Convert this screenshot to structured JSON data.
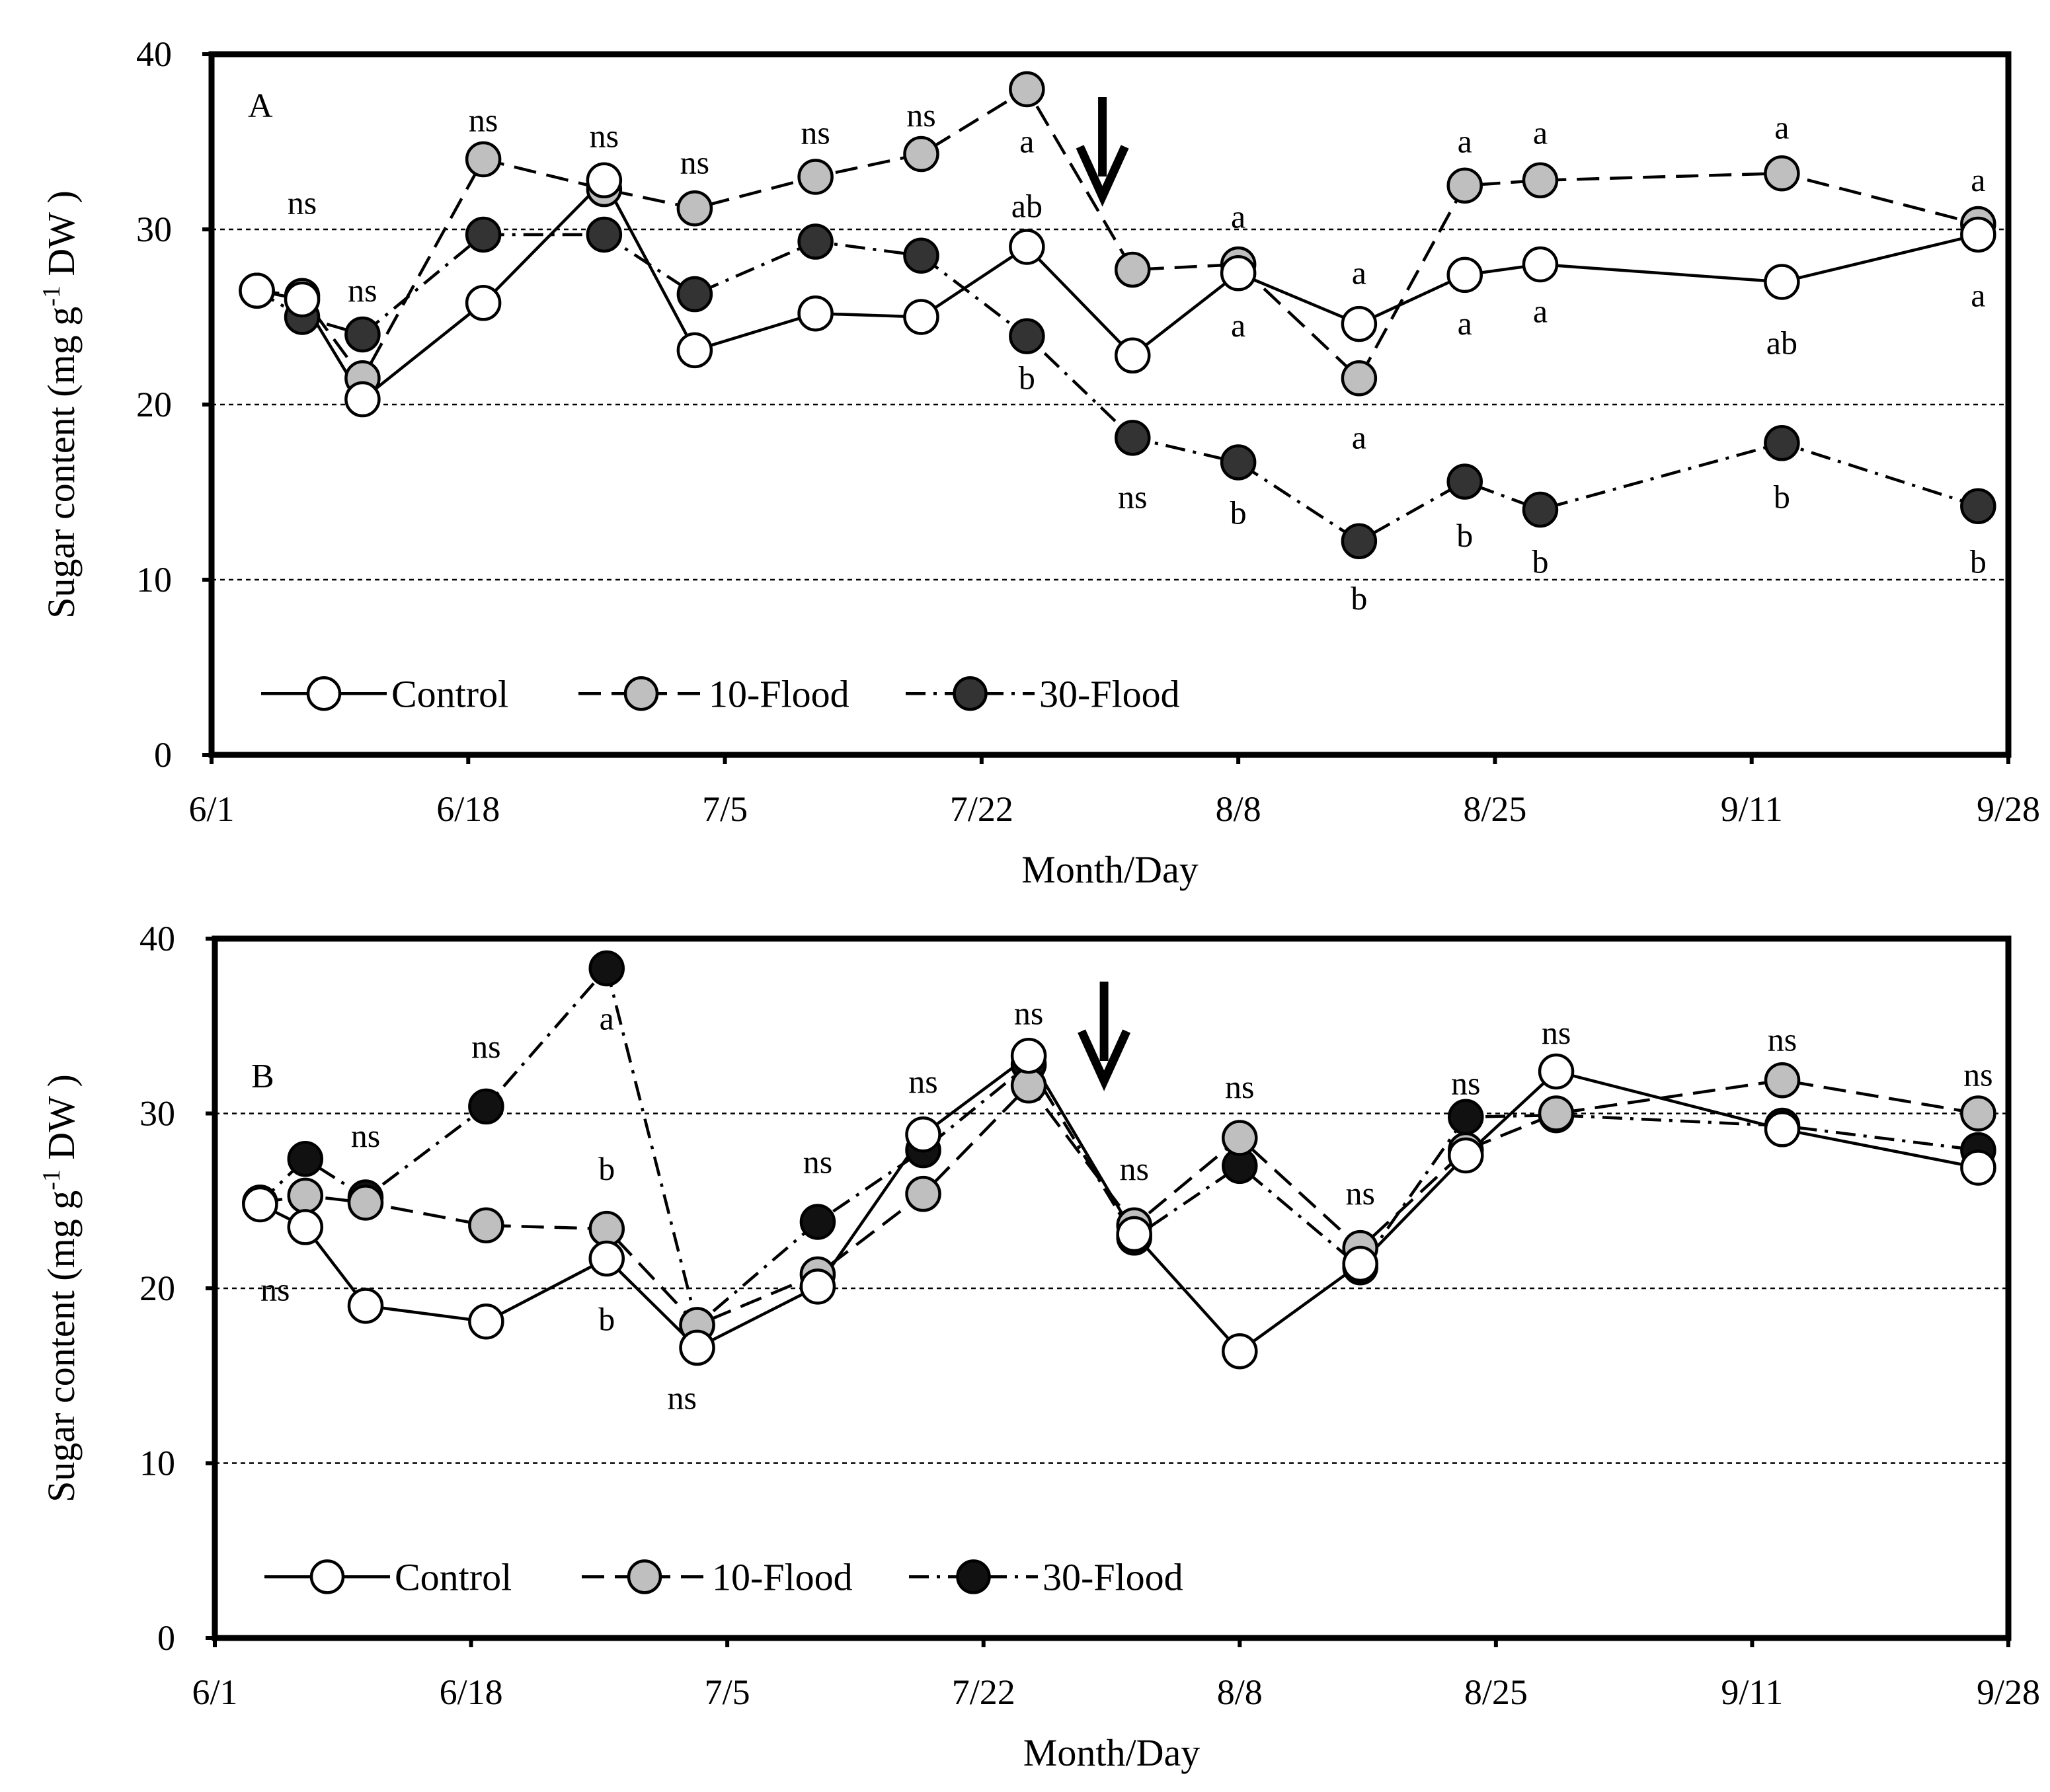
{
  "chart_data": [
    {
      "type": "line",
      "panel_label": "A",
      "xlabel": "Month/Day",
      "ylabel": "Sugar content (mg g-1 DW )",
      "ylim": [
        0,
        40
      ],
      "yticks": [
        "0",
        "10",
        "20",
        "30",
        "40"
      ],
      "xticks": [
        "6/1",
        "6/18",
        "7/5",
        "7/22",
        "8/8",
        "8/25",
        "9/11",
        "9/28"
      ],
      "gridlines_y": [
        10,
        20,
        30
      ],
      "legend_position": "bottom-left",
      "arrow_date": "7/30",
      "series": [
        {
          "name": "Control",
          "marker": "open",
          "color": "#ffffff",
          "line": "solid",
          "points": [
            [
              "6/4",
              26.5
            ],
            [
              "6/7",
              26.0
            ],
            [
              "6/11",
              20.3
            ],
            [
              "6/19",
              25.8
            ],
            [
              "6/27",
              32.8
            ],
            [
              "7/3",
              23.1
            ],
            [
              "7/11",
              25.2
            ],
            [
              "7/18",
              25.0
            ],
            [
              "7/25",
              29.0
            ],
            [
              "8/1",
              22.8
            ],
            [
              "8/8",
              27.5
            ],
            [
              "8/16",
              24.6
            ],
            [
              "8/23",
              27.4
            ],
            [
              "8/28",
              28.0
            ],
            [
              "9/13",
              27.0
            ],
            [
              "9/26",
              29.7
            ]
          ]
        },
        {
          "name": "10-Flood",
          "marker": "grey",
          "color": "#bfbfbf",
          "line": "dashed",
          "points": [
            [
              "6/4",
              26.5
            ],
            [
              "6/7",
              26.2
            ],
            [
              "6/11",
              21.5
            ],
            [
              "6/19",
              34.0
            ],
            [
              "6/27",
              32.3
            ],
            [
              "7/3",
              31.2
            ],
            [
              "7/11",
              33.0
            ],
            [
              "7/18",
              34.3
            ],
            [
              "7/25",
              38.0
            ],
            [
              "8/1",
              27.7
            ],
            [
              "8/8",
              28.0
            ],
            [
              "8/16",
              21.5
            ],
            [
              "8/23",
              32.5
            ],
            [
              "8/28",
              32.8
            ],
            [
              "9/13",
              33.2
            ],
            [
              "9/26",
              30.3
            ]
          ]
        },
        {
          "name": "30-Flood",
          "marker": "filled",
          "color": "#333333",
          "line": "dash-dot",
          "points": [
            [
              "6/4",
              26.5
            ],
            [
              "6/7",
              25.0
            ],
            [
              "6/11",
              24.0
            ],
            [
              "6/19",
              29.7
            ],
            [
              "6/27",
              29.7
            ],
            [
              "7/3",
              26.3
            ],
            [
              "7/11",
              29.3
            ],
            [
              "7/18",
              28.5
            ],
            [
              "7/25",
              23.9
            ],
            [
              "8/1",
              18.1
            ],
            [
              "8/8",
              16.7
            ],
            [
              "8/16",
              12.2
            ],
            [
              "8/23",
              15.6
            ],
            [
              "8/28",
              14.0
            ],
            [
              "9/13",
              17.8
            ],
            [
              "9/26",
              14.2
            ]
          ]
        }
      ],
      "annotations": [
        {
          "text": "ns",
          "x": "6/7",
          "y": 31.5
        },
        {
          "text": "ns",
          "x": "6/11",
          "y": 26.5
        },
        {
          "text": "ns",
          "x": "6/19",
          "y": 36.2
        },
        {
          "text": "ns",
          "x": "6/27",
          "y": 35.3
        },
        {
          "text": "ns",
          "x": "7/3",
          "y": 33.8
        },
        {
          "text": "ns",
          "x": "7/11",
          "y": 35.5
        },
        {
          "text": "ns",
          "x": "7/18",
          "y": 36.5
        },
        {
          "text": "a",
          "x": "7/25",
          "y": 35.0
        },
        {
          "text": "ab",
          "x": "7/25",
          "y": 31.3
        },
        {
          "text": "b",
          "x": "7/25",
          "y": 21.5
        },
        {
          "text": "ns",
          "x": "8/1",
          "y": 14.7
        },
        {
          "text": "a",
          "x": "8/8",
          "y": 30.7
        },
        {
          "text": "a",
          "x": "8/8",
          "y": 24.5
        },
        {
          "text": "b",
          "x": "8/8",
          "y": 13.8
        },
        {
          "text": "a",
          "x": "8/16",
          "y": 27.5
        },
        {
          "text": "a",
          "x": "8/16",
          "y": 18.1
        },
        {
          "text": "b",
          "x": "8/16",
          "y": 8.9
        },
        {
          "text": "a",
          "x": "8/23",
          "y": 35.0
        },
        {
          "text": "a",
          "x": "8/23",
          "y": 24.6
        },
        {
          "text": "b",
          "x": "8/23",
          "y": 12.5
        },
        {
          "text": "a",
          "x": "8/28",
          "y": 35.5
        },
        {
          "text": "a",
          "x": "8/28",
          "y": 25.3
        },
        {
          "text": "b",
          "x": "8/28",
          "y": 11.0
        },
        {
          "text": "a",
          "x": "9/13",
          "y": 35.8
        },
        {
          "text": "ab",
          "x": "9/13",
          "y": 23.5
        },
        {
          "text": "b",
          "x": "9/13",
          "y": 14.7
        },
        {
          "text": "a",
          "x": "9/26",
          "y": 32.8
        },
        {
          "text": "a",
          "x": "9/26",
          "y": 26.2
        },
        {
          "text": "b",
          "x": "9/26",
          "y": 11.0
        }
      ]
    },
    {
      "type": "line",
      "panel_label": "B",
      "xlabel": "Month/Day",
      "ylabel": "Sugar content (mg g-1 DW )",
      "ylim": [
        0,
        40
      ],
      "yticks": [
        "0",
        "10",
        "20",
        "30",
        "40"
      ],
      "xticks": [
        "6/1",
        "6/18",
        "7/5",
        "7/22",
        "8/8",
        "8/25",
        "9/11",
        "9/28"
      ],
      "gridlines_y": [
        10,
        20,
        30
      ],
      "legend_position": "bottom-left",
      "arrow_date": "7/30",
      "series": [
        {
          "name": "Control",
          "marker": "open",
          "color": "#ffffff",
          "line": "solid",
          "points": [
            [
              "6/4",
              24.8
            ],
            [
              "6/7",
              23.5
            ],
            [
              "6/11",
              19.0
            ],
            [
              "6/19",
              18.1
            ],
            [
              "6/27",
              21.7
            ],
            [
              "7/3",
              16.6
            ],
            [
              "7/11",
              20.1
            ],
            [
              "7/18",
              28.8
            ],
            [
              "7/25",
              33.3
            ],
            [
              "8/1",
              23.1
            ],
            [
              "8/8",
              16.4
            ],
            [
              "8/16",
              21.4
            ],
            [
              "8/23",
              27.6
            ],
            [
              "8/29",
              32.4
            ],
            [
              "9/13",
              29.1
            ],
            [
              "9/26",
              26.9
            ]
          ]
        },
        {
          "name": "10-Flood",
          "marker": "grey",
          "color": "#bfbfbf",
          "line": "dashed",
          "points": [
            [
              "6/4",
              24.9
            ],
            [
              "6/7",
              25.3
            ],
            [
              "6/11",
              24.9
            ],
            [
              "6/19",
              23.6
            ],
            [
              "6/27",
              23.4
            ],
            [
              "7/3",
              17.9
            ],
            [
              "7/11",
              20.8
            ],
            [
              "7/18",
              25.4
            ],
            [
              "7/25",
              31.6
            ],
            [
              "8/1",
              23.6
            ],
            [
              "8/8",
              28.6
            ],
            [
              "8/16",
              22.3
            ],
            [
              "8/23",
              27.9
            ],
            [
              "8/29",
              30.0
            ],
            [
              "9/13",
              31.9
            ],
            [
              "9/26",
              30.0
            ]
          ]
        },
        {
          "name": "30-Flood",
          "marker": "filled",
          "color": "#111111",
          "line": "dash-dot",
          "points": [
            [
              "6/4",
              24.9
            ],
            [
              "6/7",
              27.4
            ],
            [
              "6/11",
              25.2
            ],
            [
              "6/19",
              30.4
            ],
            [
              "6/27",
              38.3
            ],
            [
              "7/3",
              17.9
            ],
            [
              "7/11",
              23.8
            ],
            [
              "7/18",
              27.9
            ],
            [
              "7/25",
              32.8
            ],
            [
              "8/1",
              22.9
            ],
            [
              "8/8",
              27.0
            ],
            [
              "8/16",
              21.2
            ],
            [
              "8/23",
              29.8
            ],
            [
              "8/29",
              29.9
            ],
            [
              "9/13",
              29.3
            ],
            [
              "9/26",
              27.9
            ]
          ]
        }
      ],
      "annotations": [
        {
          "text": "ns",
          "x": "6/5",
          "y": 19.9
        },
        {
          "text": "ns",
          "x": "6/11",
          "y": 28.7
        },
        {
          "text": "ns",
          "x": "6/19",
          "y": 33.8
        },
        {
          "text": "a",
          "x": "6/27",
          "y": 35.4
        },
        {
          "text": "b",
          "x": "6/27",
          "y": 26.8
        },
        {
          "text": "b",
          "x": "6/27",
          "y": 18.2
        },
        {
          "text": "ns",
          "x": "7/2",
          "y": 13.7
        },
        {
          "text": "ns",
          "x": "7/11",
          "y": 27.2
        },
        {
          "text": "ns",
          "x": "7/18",
          "y": 31.8
        },
        {
          "text": "ns",
          "x": "7/25",
          "y": 35.7
        },
        {
          "text": "ns",
          "x": "8/1",
          "y": 26.8
        },
        {
          "text": "ns",
          "x": "8/8",
          "y": 31.5
        },
        {
          "text": "ns",
          "x": "8/16",
          "y": 25.4
        },
        {
          "text": "ns",
          "x": "8/23",
          "y": 31.7
        },
        {
          "text": "ns",
          "x": "8/29",
          "y": 34.6
        },
        {
          "text": "ns",
          "x": "9/13",
          "y": 34.2
        },
        {
          "text": "ns",
          "x": "9/26",
          "y": 32.2
        }
      ]
    }
  ]
}
